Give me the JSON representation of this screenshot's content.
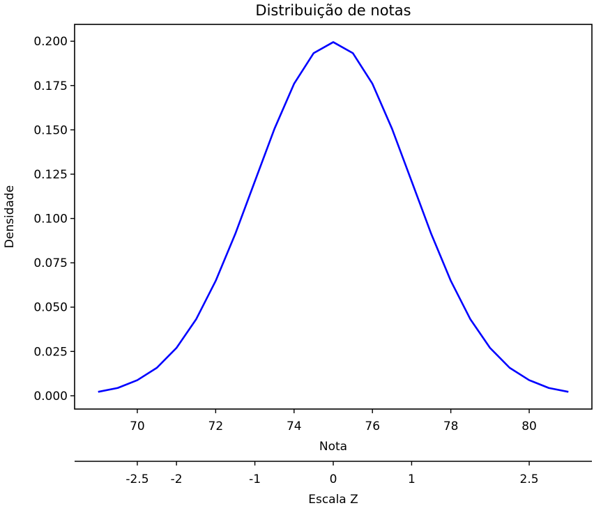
{
  "chart_data": {
    "type": "line",
    "title": "Distribuição de notas",
    "xlabel": "Nota",
    "ylabel": "Densidade",
    "secondary_xlabel": "Escala Z",
    "xlim": [
      68.4,
      81.6
    ],
    "ylim": [
      -0.0075,
      0.2095
    ],
    "x_ticks": [
      70,
      72,
      74,
      76,
      78,
      80
    ],
    "y_ticks": [
      0.0,
      0.025,
      0.05,
      0.075,
      0.1,
      0.125,
      0.15,
      0.175,
      0.2
    ],
    "y_tick_labels": [
      "0.000",
      "0.025",
      "0.050",
      "0.075",
      "0.100",
      "0.125",
      "0.150",
      "0.175",
      "0.200"
    ],
    "secondary_x_ticks": [
      {
        "value": 70.0,
        "label": "-2.5"
      },
      {
        "value": 71.0,
        "label": "-2"
      },
      {
        "value": 73.0,
        "label": "-1"
      },
      {
        "value": 75.0,
        "label": "0"
      },
      {
        "value": 77.0,
        "label": "1"
      },
      {
        "value": 80.0,
        "label": "2.5"
      }
    ],
    "grid": false,
    "series": [
      {
        "color": "#0000ff",
        "x": [
          69.0,
          69.5,
          70.0,
          70.5,
          71.0,
          71.5,
          72.0,
          72.5,
          73.0,
          73.5,
          74.0,
          74.5,
          75.0,
          75.5,
          76.0,
          76.5,
          77.0,
          77.5,
          78.0,
          78.5,
          79.0,
          79.5,
          80.0,
          80.5,
          81.0
        ],
        "y": [
          0.0022,
          0.0044,
          0.0088,
          0.0158,
          0.027,
          0.0431,
          0.0648,
          0.0913,
          0.121,
          0.1506,
          0.176,
          0.1933,
          0.1995,
          0.1933,
          0.176,
          0.1506,
          0.121,
          0.0913,
          0.0648,
          0.0431,
          0.027,
          0.0158,
          0.0088,
          0.0044,
          0.0022
        ]
      }
    ]
  }
}
